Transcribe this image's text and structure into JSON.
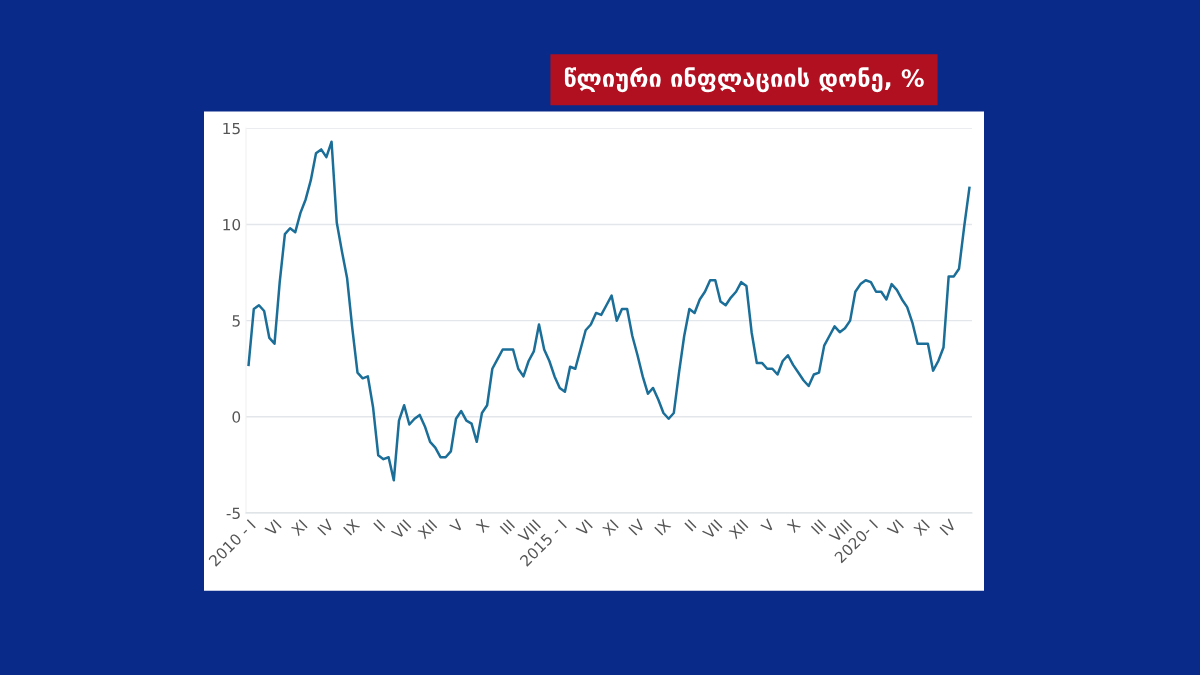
{
  "chart_data": {
    "type": "line",
    "title": "წლიური ინფლაციის დონე, %",
    "categories": [
      "2010 - I",
      null,
      null,
      null,
      null,
      "VI",
      null,
      null,
      null,
      null,
      "XI",
      null,
      null,
      null,
      null,
      "IV",
      null,
      null,
      null,
      null,
      "IX",
      null,
      null,
      null,
      null,
      "II",
      null,
      null,
      null,
      null,
      "VII",
      null,
      null,
      null,
      null,
      "XII",
      null,
      null,
      null,
      null,
      "V",
      null,
      null,
      null,
      null,
      "X",
      null,
      null,
      null,
      null,
      "III",
      null,
      null,
      null,
      null,
      "VIII",
      null,
      null,
      null,
      null,
      "2015 - I",
      null,
      null,
      null,
      null,
      "VI",
      null,
      null,
      null,
      null,
      "XI",
      null,
      null,
      null,
      null,
      "IV",
      null,
      null,
      null,
      null,
      "IX",
      null,
      null,
      null,
      null,
      "II",
      null,
      null,
      null,
      null,
      "VII",
      null,
      null,
      null,
      null,
      "XII",
      null,
      null,
      null,
      null,
      "V",
      null,
      null,
      null,
      null,
      "X",
      null,
      null,
      null,
      null,
      "III",
      null,
      null,
      null,
      null,
      "VIII",
      null,
      null,
      null,
      null,
      "2020- I",
      null,
      null,
      null,
      null,
      "VI",
      null,
      null,
      null,
      null,
      "XI",
      null,
      null,
      null,
      null,
      "IV",
      null,
      null,
      null,
      null
    ],
    "series": [
      {
        "color": "#1a6e98",
        "values": [
          2.7,
          5.6,
          5.8,
          5.5,
          4.1,
          3.8,
          7.0,
          9.5,
          9.8,
          9.6,
          10.6,
          11.3,
          12.3,
          13.7,
          13.9,
          13.5,
          14.3,
          10.1,
          8.6,
          7.2,
          4.6,
          2.3,
          2.0,
          2.1,
          0.5,
          -2.0,
          -2.2,
          -2.1,
          -3.3,
          -0.2,
          0.6,
          -0.4,
          -0.1,
          0.1,
          -0.5,
          -1.3,
          -1.6,
          -2.1,
          -2.1,
          -1.8,
          -0.1,
          0.3,
          -0.2,
          -0.35,
          -1.3,
          0.2,
          0.6,
          2.5,
          3.0,
          3.5,
          3.5,
          3.5,
          2.5,
          2.1,
          2.9,
          3.4,
          4.8,
          3.5,
          2.9,
          2.1,
          1.5,
          1.3,
          2.6,
          2.5,
          3.5,
          4.5,
          4.8,
          5.4,
          5.3,
          5.8,
          6.3,
          5.0,
          5.6,
          5.6,
          4.2,
          3.2,
          2.1,
          1.2,
          1.5,
          0.9,
          0.2,
          -0.1,
          0.2,
          2.3,
          4.2,
          5.6,
          5.4,
          6.1,
          6.5,
          7.1,
          7.1,
          6.0,
          5.8,
          6.2,
          6.5,
          7.0,
          6.8,
          4.4,
          2.8,
          2.8,
          2.5,
          2.5,
          2.2,
          2.9,
          3.2,
          2.7,
          2.3,
          1.9,
          1.6,
          2.2,
          2.3,
          3.7,
          4.2,
          4.7,
          4.4,
          4.6,
          5.0,
          6.5,
          6.9,
          7.1,
          7.0,
          6.5,
          6.5,
          6.1,
          6.9,
          6.6,
          6.1,
          5.7,
          4.9,
          3.8,
          3.8,
          3.8,
          2.4,
          2.9,
          3.6,
          7.3,
          7.3,
          7.7,
          9.9,
          11.9
        ]
      }
    ],
    "ylim": [
      -5,
      15
    ],
    "yticks": [
      -5,
      0,
      5,
      10,
      15
    ],
    "grid": "y",
    "legend": false,
    "marker": "none",
    "line_style": "solid"
  }
}
